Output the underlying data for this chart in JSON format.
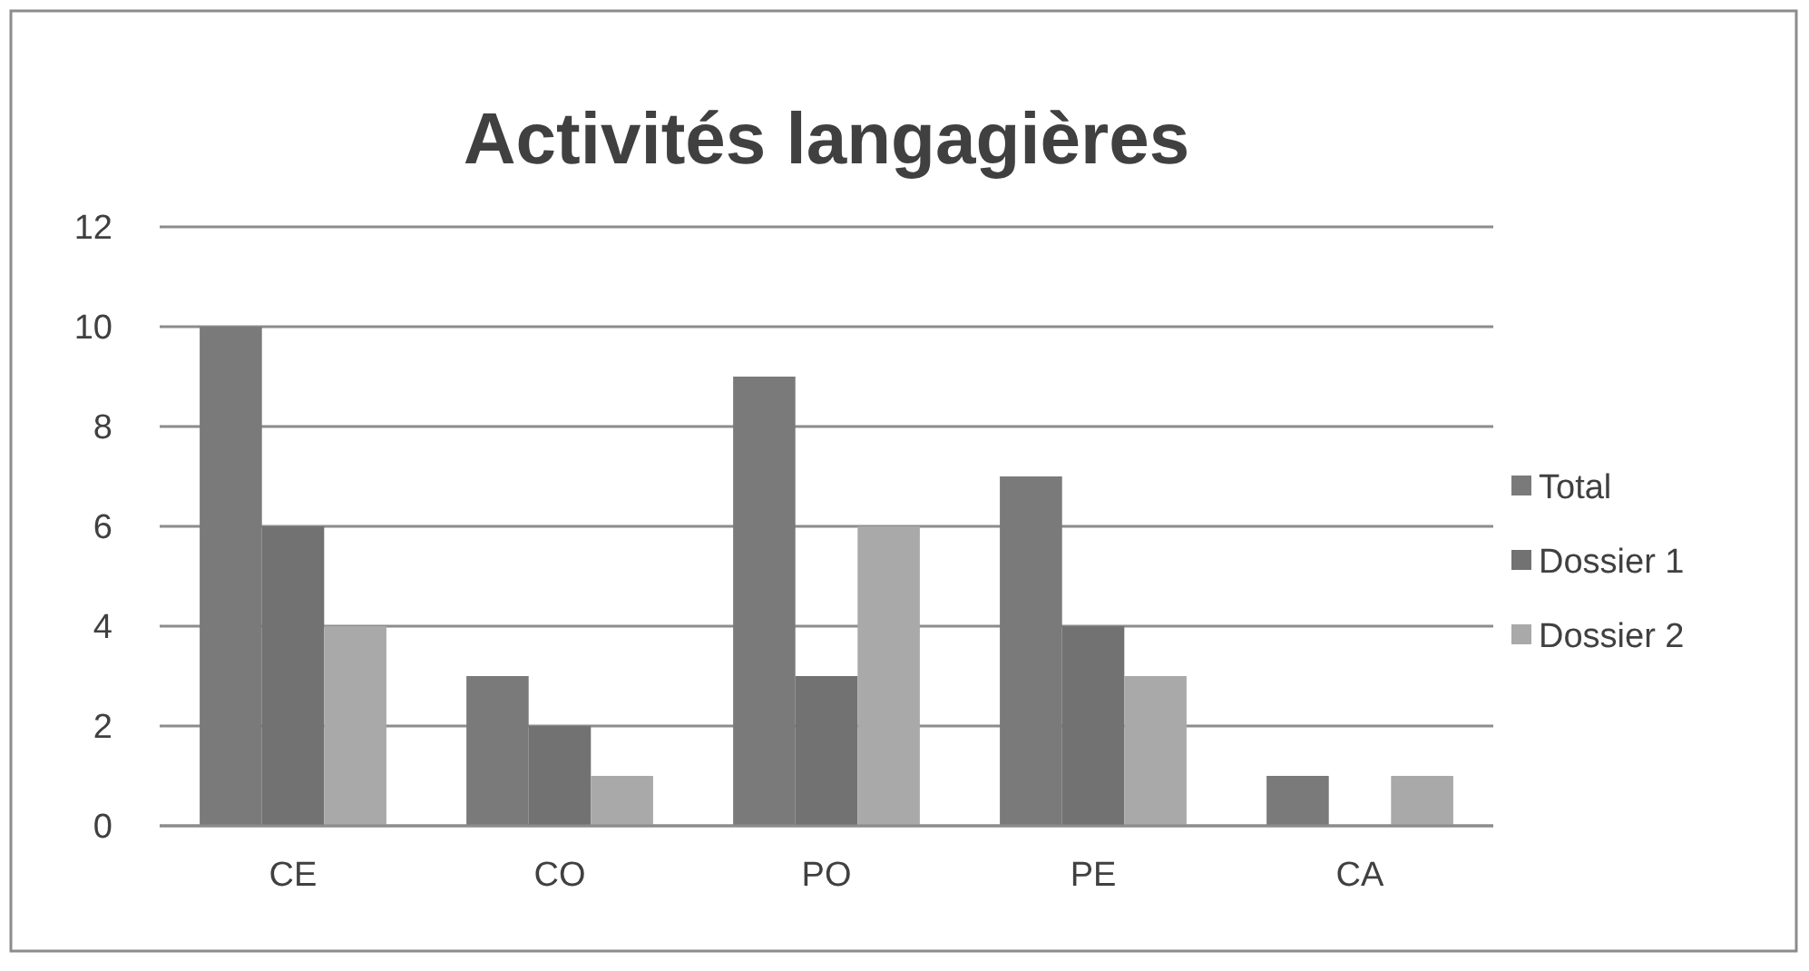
{
  "chart_data": {
    "type": "bar",
    "title": "Activités langagières",
    "categories": [
      "CE",
      "CO",
      "PO",
      "PE",
      "CA"
    ],
    "series": [
      {
        "name": "Total",
        "color": "#7a7a7a",
        "values": [
          10,
          3,
          9,
          7,
          1
        ]
      },
      {
        "name": "Dossier 1",
        "color": "#727272",
        "values": [
          6,
          2,
          3,
          4,
          0
        ]
      },
      {
        "name": "Dossier 2",
        "color": "#a9a9a9",
        "values": [
          4,
          1,
          6,
          3,
          1
        ]
      }
    ],
    "ylim": [
      0,
      12
    ],
    "yticks": [
      0,
      2,
      4,
      6,
      8,
      10,
      12
    ],
    "grid": "y",
    "legend": "right"
  }
}
